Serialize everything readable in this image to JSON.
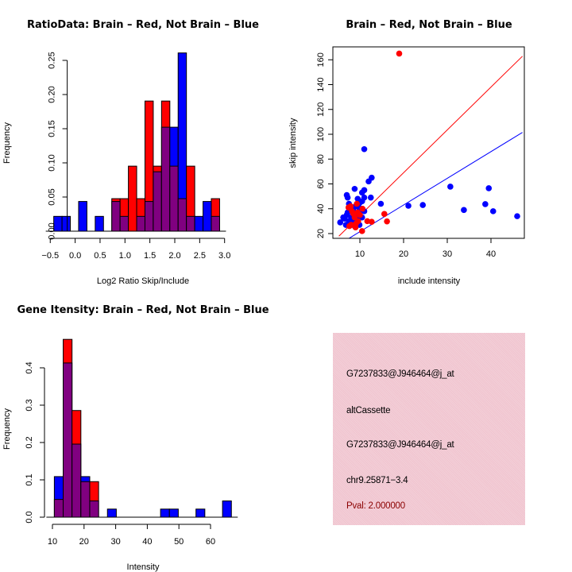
{
  "colors": {
    "brain": "#ff0000",
    "not_brain": "#0000ff",
    "overlap": "#800080",
    "info_bg": "#f0c4cf",
    "pval_text": "#8b0000"
  },
  "chart_data": [
    {
      "id": "ratio-hist",
      "type": "bar",
      "title": "RatioData: Brain – Red, Not Brain – Blue",
      "xlabel": "Log2 Ratio Skip/Include",
      "ylabel": "Frequency",
      "xlim": [
        -0.5,
        3.25
      ],
      "ylim": [
        0,
        0.26
      ],
      "xticks": [
        -0.5,
        0.0,
        0.5,
        1.0,
        1.5,
        2.0,
        2.5,
        3.0
      ],
      "xtick_labels": [
        "−0.5",
        "0.0",
        "0.5",
        "1.0",
        "1.5",
        "2.0",
        "2.5",
        "3.0"
      ],
      "yticks": [
        0.0,
        0.05,
        0.1,
        0.15,
        0.2,
        0.25
      ],
      "ytick_labels": [
        "0.00",
        "0.05",
        "0.10",
        "0.15",
        "0.20",
        "0.25"
      ],
      "bin_start": -0.43,
      "bin_width": 0.1665,
      "series": [
        {
          "name": "Brain",
          "color": "#ff0000",
          "values": [
            0,
            0,
            0,
            0,
            0,
            0,
            0,
            0.0476,
            0.0476,
            0.0952,
            0.0476,
            0.1905,
            0.0952,
            0.1905,
            0.0952,
            0.0476,
            0.0952,
            0,
            0,
            0.0476
          ]
        },
        {
          "name": "Not Brain",
          "color": "#0000ff",
          "values": [
            0.0217,
            0.0217,
            0,
            0.0435,
            0,
            0.0217,
            0,
            0.0435,
            0.0217,
            0,
            0.0217,
            0.0435,
            0.087,
            0.1522,
            0.1522,
            0.2609,
            0.0217,
            0.0217,
            0.0435,
            0.0217
          ]
        }
      ],
      "grid": false,
      "legend": "none"
    },
    {
      "id": "intensity-scatter",
      "type": "scatter",
      "title": "Brain – Red, Not Brain – Blue",
      "xlabel": "include intensity",
      "ylabel": "skip intensity",
      "xlim": [
        5.2,
        47.2
      ],
      "ylim": [
        16,
        170
      ],
      "xticks": [
        10,
        20,
        30,
        40
      ],
      "yticks": [
        20,
        40,
        60,
        80,
        100,
        120,
        140,
        160
      ],
      "series": [
        {
          "name": "Brain",
          "color": "#ff0000",
          "points": [
            [
              19.0,
              165
            ],
            [
              15.6,
              35.8
            ],
            [
              16.2,
              29.8
            ],
            [
              11.7,
              30
            ],
            [
              12.7,
              29.5
            ],
            [
              10.5,
              22
            ],
            [
              7.4,
              41
            ],
            [
              8.2,
              38
            ],
            [
              9.3,
              44
            ],
            [
              8.5,
              36
            ],
            [
              9.5,
              37
            ],
            [
              10.6,
              40
            ],
            [
              8.0,
              27
            ],
            [
              9.0,
              25
            ],
            [
              7.6,
              26
            ],
            [
              9.6,
              30
            ],
            [
              8.8,
              33
            ],
            [
              10.0,
              35
            ],
            [
              7.9,
              42
            ],
            [
              9.1,
              28
            ]
          ]
        },
        {
          "name": "Not Brain",
          "color": "#0000ff",
          "points": [
            [
              30.7,
              57.8
            ],
            [
              39.5,
              56.5
            ],
            [
              21.1,
              42.4
            ],
            [
              24.4,
              43
            ],
            [
              33.8,
              39
            ],
            [
              38.7,
              43.7
            ],
            [
              40.5,
              38
            ],
            [
              46.0,
              34
            ],
            [
              11.0,
              88
            ],
            [
              12.0,
              62
            ],
            [
              12.7,
              65
            ],
            [
              11.0,
              55
            ],
            [
              10.5,
              53
            ],
            [
              8.8,
              56
            ],
            [
              7.0,
              51
            ],
            [
              7.2,
              49
            ],
            [
              12.5,
              49
            ],
            [
              11.0,
              49
            ],
            [
              9.5,
              48
            ],
            [
              14.8,
              44
            ],
            [
              5.5,
              29
            ],
            [
              6.5,
              32
            ],
            [
              7.0,
              35
            ],
            [
              7.5,
              30
            ],
            [
              8.0,
              33
            ],
            [
              8.5,
              40
            ],
            [
              9.0,
              42
            ],
            [
              10.0,
              45
            ],
            [
              10.5,
              46
            ],
            [
              9.8,
              41
            ],
            [
              7.5,
              44
            ],
            [
              8.2,
              31
            ],
            [
              9.2,
              36
            ],
            [
              10.2,
              38
            ],
            [
              11.0,
              38
            ],
            [
              6.8,
              27
            ],
            [
              7.8,
              28
            ],
            [
              8.8,
              26
            ],
            [
              9.9,
              27
            ],
            [
              6.2,
              33
            ],
            [
              7.2,
              37
            ],
            [
              8.0,
              39
            ],
            [
              9.5,
              33
            ],
            [
              10.5,
              33
            ],
            [
              8.6,
              29
            ]
          ]
        }
      ],
      "lines": [
        {
          "name": "brain-fit",
          "color": "#ff0000",
          "slope": 3.45,
          "intercept": 0
        },
        {
          "name": "not-brain-fit",
          "color": "#0000ff",
          "slope": 2.15,
          "intercept": 0
        }
      ],
      "grid": false,
      "legend": "none"
    },
    {
      "id": "gene-intensity-hist",
      "type": "bar",
      "title": "Gene Itensity: Brain – Red, Not Brain – Blue",
      "xlabel": "Intensity",
      "ylabel": "Frequency",
      "xlim": [
        10,
        68
      ],
      "ylim": [
        0,
        0.48
      ],
      "xticks": [
        10,
        20,
        30,
        40,
        50,
        60
      ],
      "xtick_labels": [
        "10",
        "20",
        "30",
        "40",
        "50",
        "60"
      ],
      "yticks": [
        0.0,
        0.1,
        0.2,
        0.3,
        0.4
      ],
      "ytick_labels": [
        "0.0",
        "0.1",
        "0.2",
        "0.3",
        "0.4"
      ],
      "bin_start": 10.6,
      "bin_width": 2.8,
      "series": [
        {
          "name": "Brain",
          "color": "#ff0000",
          "values": [
            0.0476,
            0.4762,
            0.2857,
            0.0952,
            0.0952,
            0,
            0,
            0,
            0,
            0,
            0,
            0,
            0,
            0,
            0,
            0,
            0,
            0,
            0,
            0
          ]
        },
        {
          "name": "Not Brain",
          "color": "#0000ff",
          "values": [
            0.1087,
            0.413,
            0.1957,
            0.1087,
            0.0435,
            0,
            0.0217,
            0,
            0,
            0,
            0,
            0,
            0.0217,
            0.0217,
            0,
            0,
            0.0217,
            0,
            0,
            0.0435
          ]
        }
      ],
      "grid": false,
      "legend": "none"
    }
  ],
  "info_panel": {
    "lines": [
      "G7237833@J946464@j_at",
      "altCassette",
      "G7237833@J946464@j_at",
      "chr9.25871−3.4"
    ],
    "pval": "Pval: 2.000000"
  }
}
